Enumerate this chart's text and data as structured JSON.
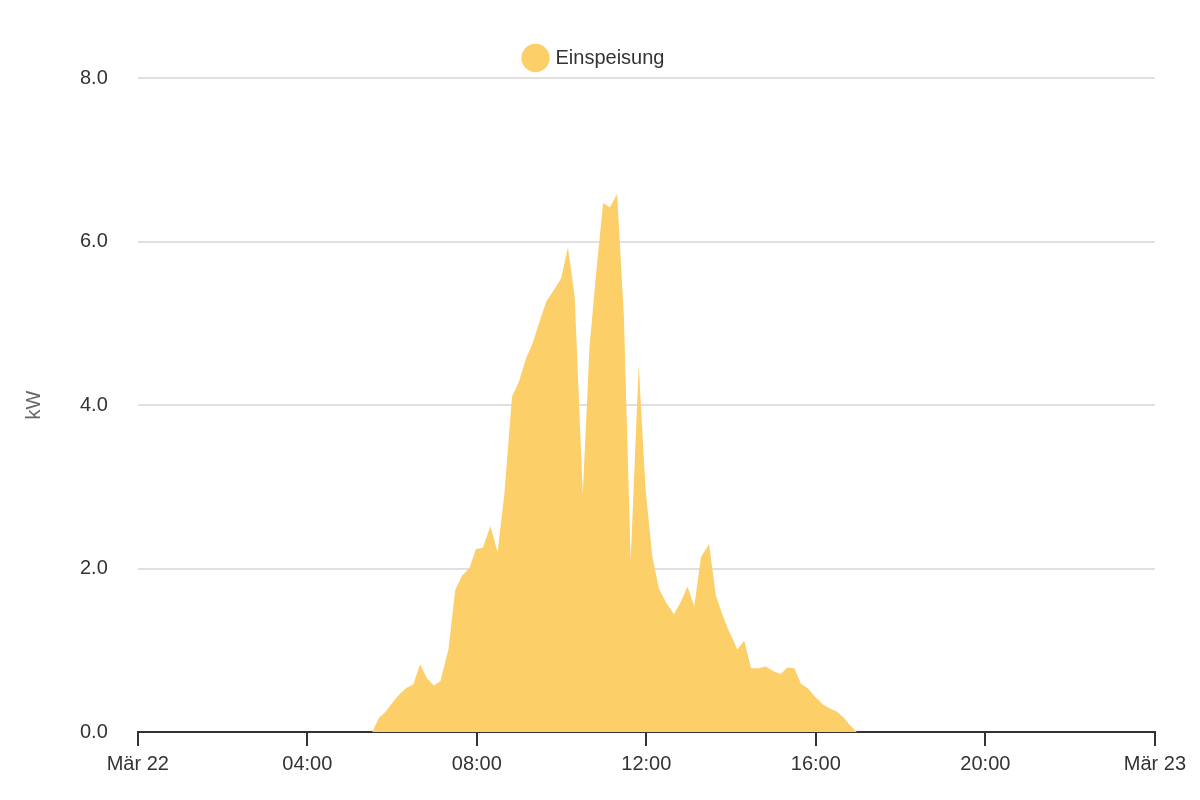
{
  "chart_data": {
    "type": "area",
    "ylabel": "kW",
    "legend": "top",
    "x": [
      5.53,
      5.69,
      5.85,
      6.01,
      6.17,
      6.34,
      6.5,
      6.66,
      6.82,
      6.98,
      7.14,
      7.33,
      7.49,
      7.65,
      7.82,
      7.98,
      8.14,
      8.32,
      8.49,
      8.65,
      8.83,
      8.99,
      9.16,
      9.32,
      9.48,
      9.64,
      9.8,
      9.99,
      10.15,
      10.31,
      10.5,
      10.66,
      10.82,
      10.98,
      11.14,
      11.31,
      11.47,
      11.63,
      11.82,
      11.98,
      12.14,
      12.3,
      12.46,
      12.65,
      12.81,
      12.97,
      13.13,
      13.29,
      13.48,
      13.64,
      13.78,
      13.92,
      14.15,
      14.31,
      14.47,
      14.64,
      14.82,
      14.98,
      15.17,
      15.33,
      15.49,
      15.65,
      15.82,
      15.98,
      16.16,
      16.32,
      16.49,
      16.65,
      16.81,
      16.97
    ],
    "series": [
      {
        "name": "Einspeisung",
        "color": "#fdcf69",
        "values": [
          0,
          0.17,
          0.25,
          0.36,
          0.46,
          0.54,
          0.58,
          0.83,
          0.66,
          0.57,
          0.62,
          1.01,
          1.74,
          1.91,
          2.0,
          2.24,
          2.25,
          2.52,
          2.2,
          2.91,
          4.1,
          4.28,
          4.57,
          4.76,
          5.02,
          5.27,
          5.39,
          5.55,
          5.93,
          5.32,
          2.91,
          4.72,
          5.64,
          6.47,
          6.42,
          6.58,
          5.09,
          2.1,
          4.49,
          2.98,
          2.15,
          1.75,
          1.59,
          1.44,
          1.59,
          1.78,
          1.54,
          2.14,
          2.3,
          1.67,
          1.46,
          1.27,
          1.01,
          1.12,
          0.78,
          0.78,
          0.8,
          0.75,
          0.71,
          0.79,
          0.78,
          0.59,
          0.53,
          0.43,
          0.34,
          0.29,
          0.25,
          0.18,
          0.08,
          0
        ]
      }
    ],
    "xlim": [
      0,
      24
    ],
    "xticks": [
      {
        "value": 0,
        "label": "Mär 22"
      },
      {
        "value": 4,
        "label": "04:00"
      },
      {
        "value": 8,
        "label": "08:00"
      },
      {
        "value": 12,
        "label": "12:00"
      },
      {
        "value": 16,
        "label": "16:00"
      },
      {
        "value": 20,
        "label": "20:00"
      },
      {
        "value": 24,
        "label": "Mär 23"
      }
    ],
    "ylim": [
      0,
      8
    ],
    "yticks": [
      {
        "value": 0,
        "label": "0.0"
      },
      {
        "value": 2,
        "label": "2.0"
      },
      {
        "value": 4,
        "label": "4.0"
      },
      {
        "value": 6,
        "label": "6.0"
      },
      {
        "value": 8,
        "label": "8.0"
      }
    ],
    "grid": "y"
  }
}
